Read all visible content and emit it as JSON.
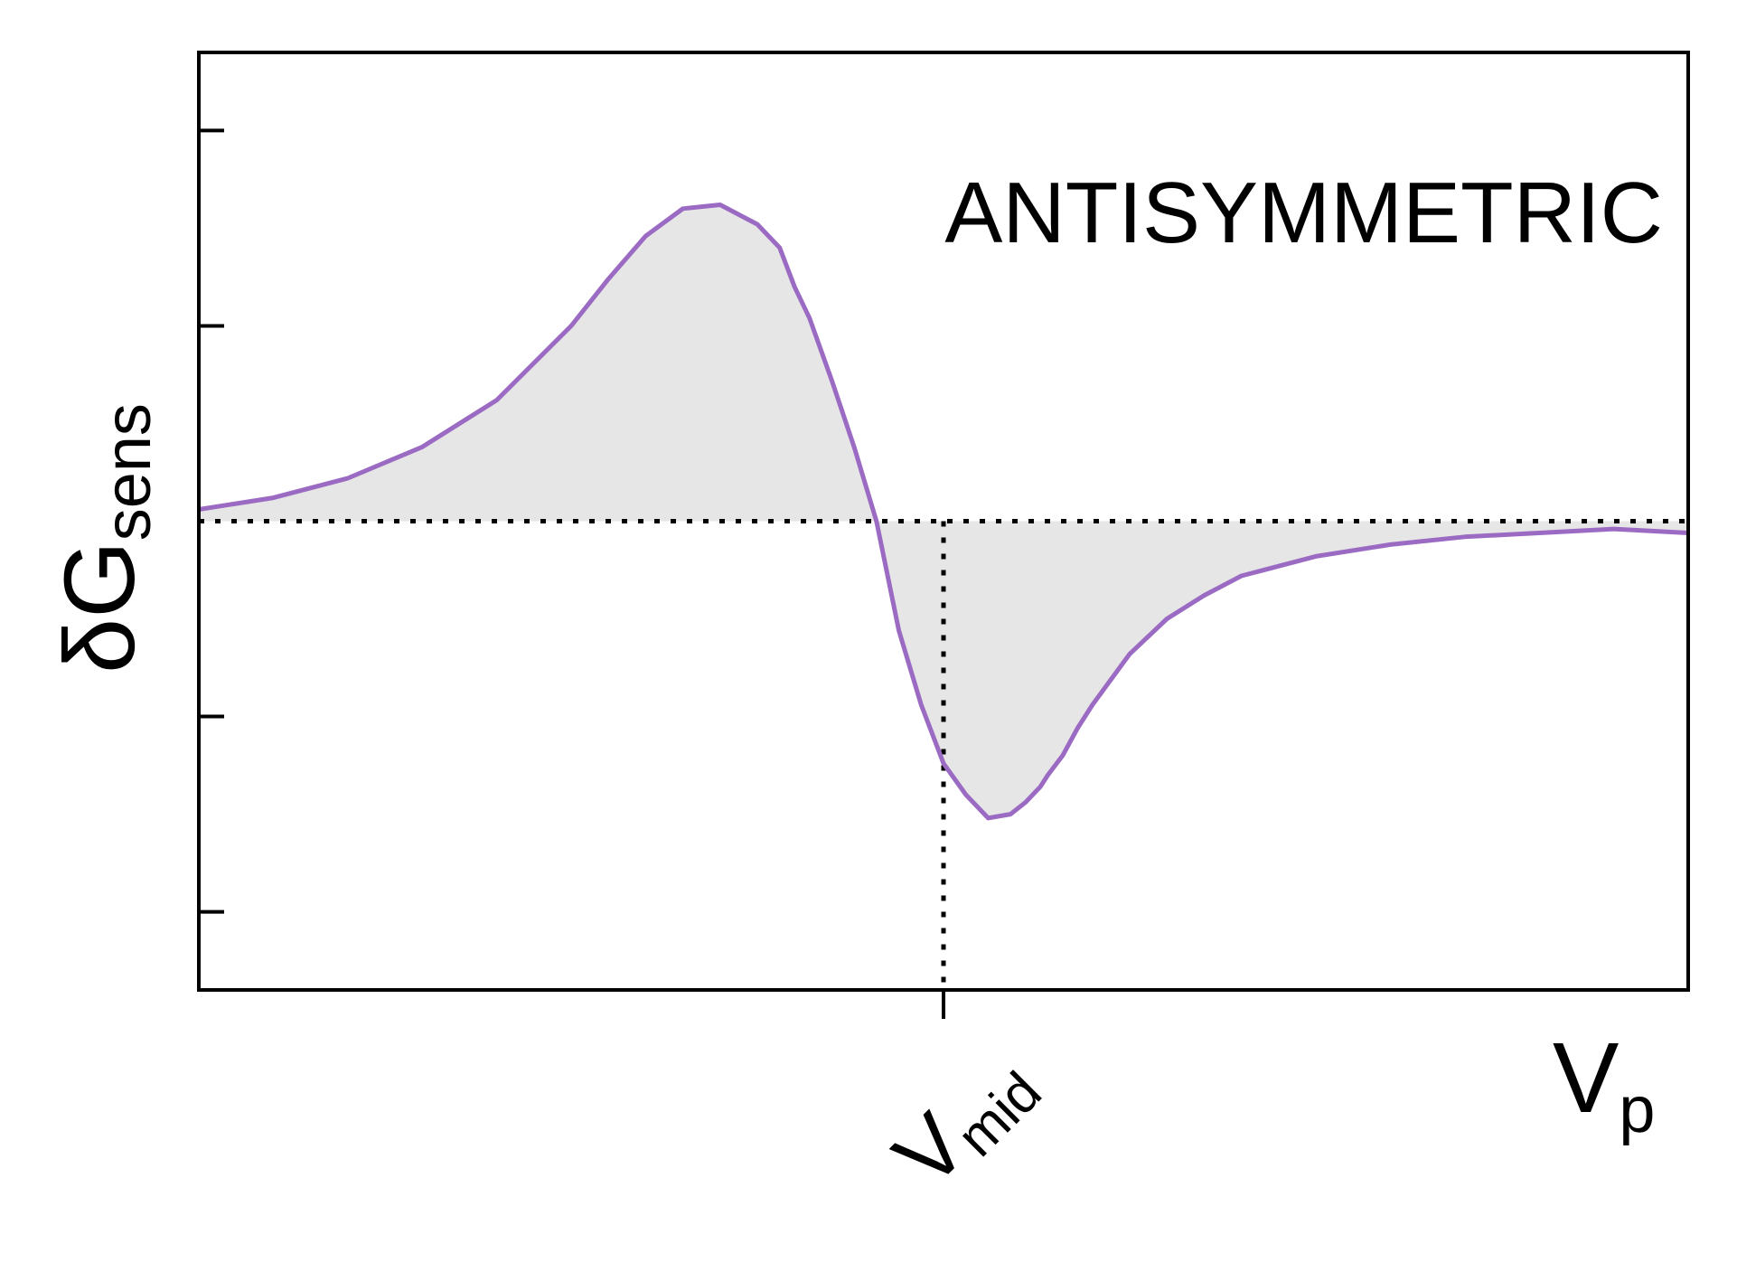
{
  "chart_data": {
    "type": "line",
    "title": "",
    "annotation": "ANTISYMMETRIC",
    "ylabel": "δG",
    "ylabel_sub": "sens",
    "xlabel": "V",
    "xlabel_sub": "p",
    "xtick_label": "V",
    "xtick_label_sub": "mid",
    "xlim": [
      -1,
      1
    ],
    "ylim": [
      -1.2,
      1.2
    ],
    "yticks": [
      -1,
      -0.5,
      0.5,
      1
    ],
    "xticks": [
      0
    ],
    "grid": false,
    "legend": "none",
    "reference_lines": {
      "y_zero_dotted": true,
      "x_mid_dotted": true
    },
    "fill_to_zero": true,
    "series": [
      {
        "color": "#9b6bc3",
        "fill": "#e6e6e6",
        "x": [
          -1.0,
          -0.9,
          -0.8,
          -0.7,
          -0.6,
          -0.5,
          -0.45,
          -0.4,
          -0.35,
          -0.3,
          -0.25,
          -0.22,
          -0.2,
          -0.18,
          -0.15,
          -0.12,
          -0.09,
          -0.06,
          -0.03,
          0.0,
          0.03,
          0.06,
          0.09,
          0.11,
          0.13,
          0.14,
          0.16,
          0.18,
          0.2,
          0.25,
          0.3,
          0.35,
          0.4,
          0.5,
          0.6,
          0.7,
          0.8,
          0.9,
          1.0
        ],
        "y": [
          0.03,
          0.06,
          0.11,
          0.19,
          0.31,
          0.5,
          0.62,
          0.73,
          0.8,
          0.81,
          0.76,
          0.7,
          0.6,
          0.52,
          0.36,
          0.19,
          0.0,
          -0.28,
          -0.47,
          -0.62,
          -0.7,
          -0.76,
          -0.75,
          -0.72,
          -0.68,
          -0.65,
          -0.6,
          -0.53,
          -0.47,
          -0.34,
          -0.25,
          -0.19,
          -0.14,
          -0.09,
          -0.06,
          -0.04,
          -0.03,
          -0.02,
          -0.03
        ]
      }
    ]
  }
}
